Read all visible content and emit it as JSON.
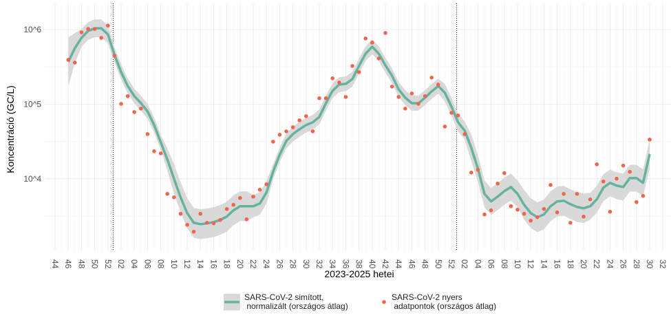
{
  "chart_data": {
    "type": "line",
    "x_label": "2023-2025 hetei",
    "y_label": "Koncentráció (GC/L)",
    "log_scale": true,
    "grid": true,
    "legend": "bottom",
    "categories": [
      "44",
      null,
      "46",
      null,
      "48",
      null,
      "50",
      null,
      "52",
      null,
      "02",
      null,
      "04",
      null,
      "06",
      null,
      "08",
      null,
      "10",
      null,
      "12",
      null,
      "14",
      null,
      "16",
      null,
      "18",
      null,
      "20",
      null,
      "22",
      null,
      "24",
      null,
      "26",
      null,
      "28",
      null,
      "30",
      null,
      "32",
      null,
      "34",
      null,
      "36",
      null,
      "38",
      null,
      "40",
      null,
      "42",
      null,
      "44",
      null,
      "46",
      null,
      "48",
      null,
      "50",
      null,
      "52",
      null,
      "02",
      null,
      "04",
      null,
      "06",
      null,
      "08",
      null,
      "10",
      null,
      "12",
      null,
      "14",
      null,
      "16",
      null,
      "18",
      null,
      "20",
      null,
      "22",
      null,
      "24",
      null,
      "26",
      null,
      "28",
      null,
      "30",
      null,
      "32"
    ],
    "ylim": [
      1070,
      2240000
    ],
    "yticks": [
      {
        "value": 10000,
        "label": "10^4"
      },
      {
        "value": 100000,
        "label": "10^5"
      },
      {
        "value": 1000000,
        "label": "10^6"
      }
    ],
    "series": [
      {
        "name": "SARS-CoV-2 simított,\n normalizált (országos átlag)",
        "type": "line",
        "color": "#66b2a0",
        "band_color": "#d9d9d9",
        "values": [
          null,
          null,
          369000,
          564000,
          774000,
          959000,
          1040000,
          1040000,
          861000,
          456000,
          269000,
          175000,
          128000,
          103000,
          80000,
          52400,
          30800,
          18100,
          10000,
          5640,
          3460,
          2570,
          2460,
          2520,
          2620,
          2800,
          3110,
          3770,
          4280,
          4280,
          4280,
          4660,
          6550,
          12400,
          21000,
          32100,
          39700,
          46100,
          52400,
          57000,
          67500,
          103000,
          151000,
          183000,
          187000,
          217000,
          325000,
          475000,
          589000,
          475000,
          332000,
          241000,
          158000,
          122000,
          103000,
          103000,
          122000,
          148000,
          175000,
          142000,
          92900,
          57000,
          44200,
          26000,
          13700,
          6270,
          4970,
          5760,
          6820,
          7740,
          6270,
          4470,
          3460,
          3050,
          3320,
          4280,
          4970,
          5070,
          4560,
          4190,
          4020,
          4280,
          5290,
          7590,
          8810,
          8090,
          7740,
          10200,
          10200,
          8810,
          21500,
          null,
          null
        ],
        "lower": [
          null,
          null,
          172000,
          356000,
          587000,
          728000,
          789000,
          789000,
          653000,
          362000,
          214000,
          139000,
          102000,
          81800,
          63500,
          41600,
          24500,
          12800,
          6310,
          3560,
          2180,
          1620,
          1550,
          1590,
          1650,
          1770,
          1960,
          2380,
          2700,
          2700,
          3030,
          3300,
          4640,
          9850,
          16700,
          25500,
          31500,
          36600,
          41600,
          45300,
          53600,
          81800,
          120000,
          145000,
          149000,
          172000,
          258000,
          377000,
          468000,
          377000,
          264000,
          191000,
          125000,
          96900,
          81800,
          81800,
          96900,
          118000,
          139000,
          108000,
          70500,
          43200,
          33500,
          17200,
          9050,
          4140,
          3280,
          3800,
          4500,
          5110,
          4140,
          2820,
          2180,
          1920,
          2090,
          2700,
          3140,
          3200,
          2880,
          2640,
          2540,
          2830,
          3490,
          5010,
          5820,
          5340,
          5110,
          6740,
          6740,
          5820,
          13600,
          null,
          null
        ],
        "upper": [
          null,
          null,
          790000,
          894000,
          1020000,
          1260000,
          1370000,
          1370000,
          1130000,
          574000,
          339000,
          220000,
          161000,
          130000,
          101000,
          66000,
          38800,
          25600,
          15800,
          8940,
          5480,
          4070,
          3900,
          3990,
          4150,
          4440,
          4930,
          5980,
          6780,
          6780,
          6050,
          6580,
          9260,
          15600,
          26400,
          40400,
          50000,
          58000,
          66000,
          71800,
          85000,
          130000,
          190000,
          230000,
          235000,
          273000,
          409000,
          598000,
          742000,
          598000,
          418000,
          303000,
          199000,
          154000,
          130000,
          130000,
          154000,
          186000,
          220000,
          187000,
          122000,
          75100,
          58300,
          39400,
          20700,
          9490,
          7520,
          8720,
          10300,
          11700,
          9490,
          7080,
          5480,
          4830,
          5260,
          6780,
          7880,
          8040,
          7230,
          6640,
          6370,
          6480,
          8010,
          11500,
          13300,
          12200,
          11700,
          15400,
          15400,
          13300,
          34100,
          null,
          null
        ]
      },
      {
        "name": "SARS-CoV-2 nyers\n adatpontok (országos átlag)",
        "type": "scatter",
        "color": "#f0654d",
        "values": [
          null,
          null,
          393000,
          361000,
          918000,
          1020000,
          1020000,
          774000,
          1130000,
          447000,
          101000,
          128000,
          78300,
          87200,
          39700,
          23400,
          21900,
          6270,
          5640,
          3390,
          2410,
          1950,
          3390,
          2570,
          2520,
          2800,
          3930,
          4470,
          5520,
          2860,
          5760,
          7130,
          8440,
          31400,
          38900,
          43200,
          49100,
          60700,
          69000,
          43200,
          120000,
          120000,
          222000,
          195000,
          125000,
          325000,
          269000,
          759000,
          668000,
          410000,
          900000,
          172000,
          125000,
          87200,
          139000,
          101000,
          128000,
          227000,
          183000,
          50100,
          76700,
          70500,
          39700,
          12100,
          13200,
          3320,
          3770,
          8620,
          11900,
          4280,
          3850,
          3390,
          2740,
          3050,
          3930,
          8260,
          3540,
          6270,
          2570,
          6270,
          3110,
          5290,
          15600,
          9190,
          3610,
          10000,
          15000,
          12400,
          4870,
          5890,
          33500,
          null,
          null
        ]
      }
    ]
  }
}
